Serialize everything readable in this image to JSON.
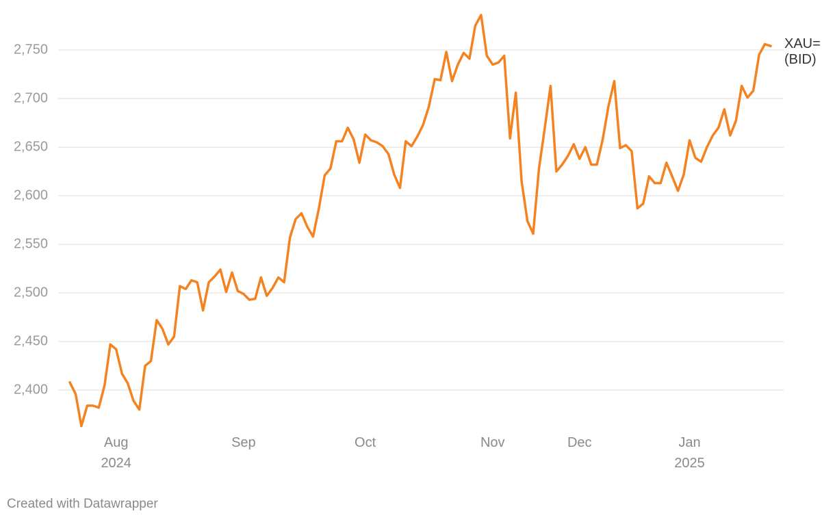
{
  "chart_data": {
    "type": "line",
    "categories": [
      null,
      null,
      null,
      null,
      null,
      null,
      null,
      null,
      "Aug 2024",
      null,
      null,
      null,
      null,
      null,
      null,
      null,
      null,
      null,
      null,
      null,
      null,
      null,
      null,
      null,
      null,
      null,
      null,
      null,
      null,
      null,
      "Sep",
      null,
      null,
      null,
      null,
      null,
      null,
      null,
      null,
      null,
      null,
      null,
      null,
      null,
      null,
      null,
      null,
      null,
      null,
      null,
      null,
      "Oct",
      null,
      null,
      null,
      null,
      null,
      null,
      null,
      null,
      null,
      null,
      null,
      null,
      null,
      null,
      null,
      null,
      null,
      null,
      null,
      null,
      null,
      "Nov",
      null,
      null,
      null,
      null,
      null,
      null,
      null,
      null,
      null,
      null,
      null,
      null,
      null,
      null,
      "Dec",
      null,
      null,
      null,
      null,
      null,
      null,
      null,
      null,
      null,
      null,
      null,
      null,
      null,
      null,
      null,
      null,
      null,
      null,
      "Jan 2025",
      null,
      null,
      null,
      null,
      null,
      null,
      null,
      null,
      null,
      null,
      null,
      null,
      null,
      null
    ],
    "series": [
      {
        "name": "XAU= (BID)",
        "color": "#f58220",
        "values": [
          2408,
          2396,
          2363,
          2384,
          2384,
          2382,
          2405,
          2447,
          2442,
          2417,
          2407,
          2389,
          2380,
          2425,
          2430,
          2472,
          2463,
          2447,
          2455,
          2507,
          2504,
          2513,
          2511,
          2482,
          2511,
          2517,
          2524,
          2501,
          2521,
          2502,
          2499,
          2493,
          2494,
          2516,
          2497,
          2505,
          2516,
          2511,
          2557,
          2576,
          2582,
          2568,
          2558,
          2587,
          2621,
          2628,
          2656,
          2656,
          2670,
          2658,
          2634,
          2663,
          2657,
          2655,
          2651,
          2643,
          2622,
          2608,
          2656,
          2651,
          2661,
          2673,
          2692,
          2720,
          2719,
          2748,
          2718,
          2735,
          2747,
          2741,
          2775,
          2786,
          2744,
          2735,
          2737,
          2744,
          2659,
          2706,
          2615,
          2574,
          2561,
          2628,
          2670,
          2713,
          2625,
          2632,
          2641,
          2653,
          2638,
          2650,
          2632,
          2632,
          2658,
          2692,
          2718,
          2649,
          2652,
          2646,
          2587,
          2592,
          2620,
          2613,
          2613,
          2634,
          2620,
          2605,
          2622,
          2657,
          2639,
          2635,
          2650,
          2662,
          2670,
          2689,
          2662,
          2677,
          2713,
          2701,
          2708,
          2745,
          2756,
          2754
        ]
      }
    ],
    "ylim": [
      2360,
      2800
    ],
    "yticks": [
      {
        "value": 2400,
        "label": "2,400"
      },
      {
        "value": 2450,
        "label": "2,450"
      },
      {
        "value": 2500,
        "label": "2,500"
      },
      {
        "value": 2550,
        "label": "2,550"
      },
      {
        "value": 2600,
        "label": "2,600"
      },
      {
        "value": 2650,
        "label": "2,650"
      },
      {
        "value": 2700,
        "label": "2,700"
      },
      {
        "value": 2750,
        "label": "2,750"
      }
    ],
    "grid": true,
    "footer": "Created with Datawrapper"
  }
}
